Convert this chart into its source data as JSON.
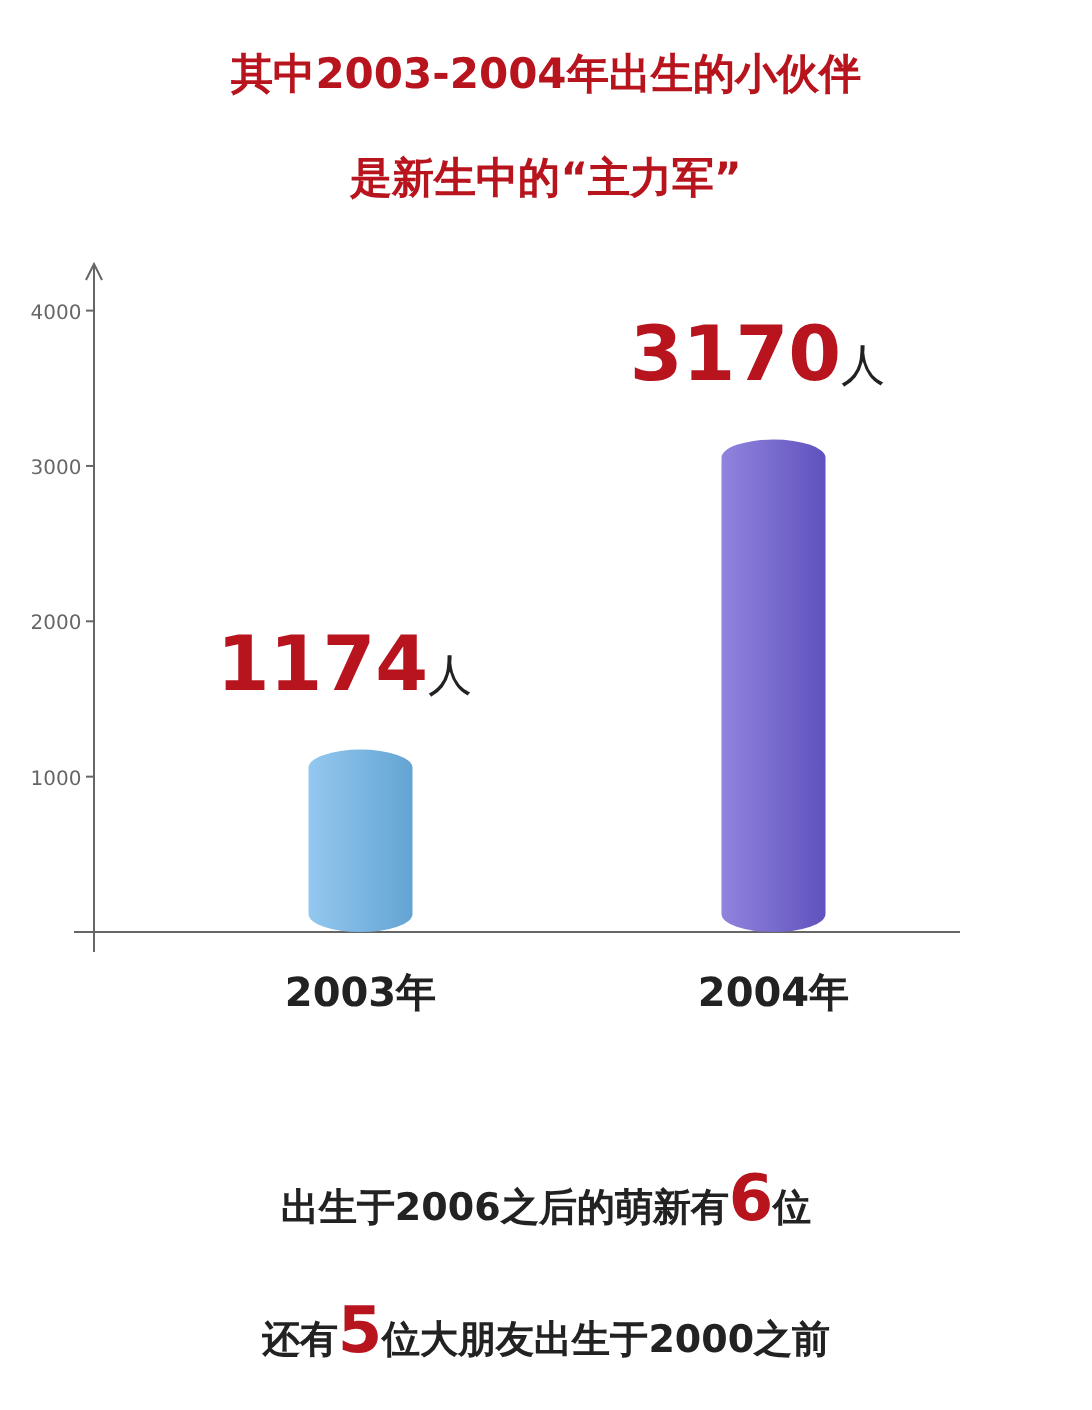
{
  "chart_data": {
    "type": "bar",
    "title": "其中2003-2004年出生的小伙伴",
    "subtitle": "是新生中的“主力军”",
    "categories": [
      "2003年",
      "2004年"
    ],
    "values": [
      1174,
      3170
    ],
    "colors": [
      "#6fb6ea",
      "#6b5bd3"
    ],
    "value_labels": [
      "1174人",
      "3170人"
    ],
    "ylim": [
      0,
      4300
    ],
    "yticks": [
      1000,
      2000,
      3000,
      4000
    ],
    "annotations": [
      "出生于2006之后的萌新有6位",
      "还有5位大朋友出生于2000之前"
    ]
  }
}
